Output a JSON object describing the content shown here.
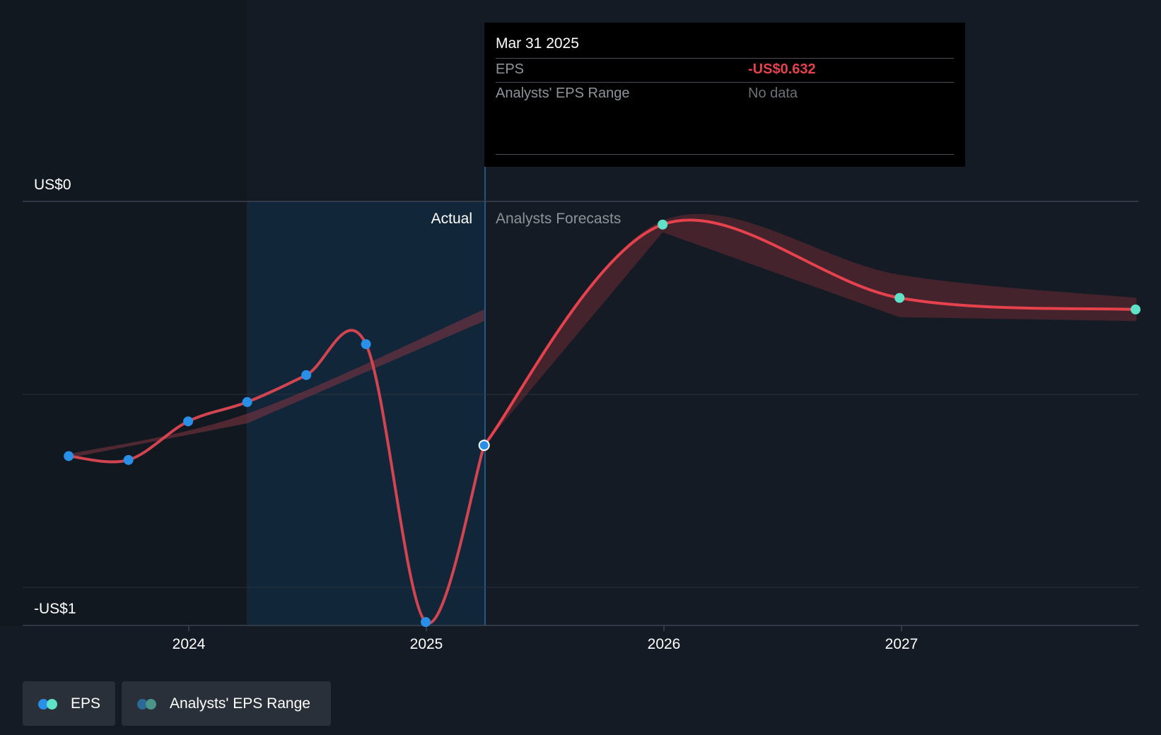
{
  "tooltip": {
    "date": "Mar 31 2025",
    "rows": [
      {
        "label": "EPS",
        "value": "-US$0.632"
      },
      {
        "label": "Analysts' EPS Range",
        "value": "No data"
      }
    ]
  },
  "labels": {
    "actual": "Actual",
    "forecast": "Analysts Forecasts"
  },
  "legend": {
    "eps": "EPS",
    "range": "Analysts' EPS Range"
  },
  "colors": {
    "background": "#151b24",
    "eps_line": "#e5424d",
    "actual_marker": "#2a8fe6",
    "forecast_marker": "#5fe3c8",
    "range_band": "#6b2a33",
    "highlight_region": "#12263a"
  },
  "chart_data": {
    "type": "line",
    "title": "",
    "xlabel": "",
    "ylabel": "",
    "y_axis_labels": [
      "US$0",
      "-US$1"
    ],
    "x_ticks": [
      "2024",
      "2025",
      "2026",
      "2027"
    ],
    "ylim": [
      -1.1,
      0
    ],
    "grid": true,
    "legend": "bottom-left",
    "series": [
      {
        "name": "EPS",
        "kind": "actual",
        "points": [
          {
            "x": "2023-06-30",
            "y": -0.66
          },
          {
            "x": "2023-09-30",
            "y": -0.67
          },
          {
            "x": "2023-12-31",
            "y": -0.57
          },
          {
            "x": "2024-03-31",
            "y": -0.52
          },
          {
            "x": "2024-06-30",
            "y": -0.45
          },
          {
            "x": "2024-09-30",
            "y": -0.37
          },
          {
            "x": "2024-12-31",
            "y": -1.09
          },
          {
            "x": "2025-03-31",
            "y": -0.632
          }
        ]
      },
      {
        "name": "EPS",
        "kind": "forecast",
        "points": [
          {
            "x": "2025-03-31",
            "y": -0.632
          },
          {
            "x": "2025-12-31",
            "y": -0.06
          },
          {
            "x": "2026-12-31",
            "y": -0.25
          },
          {
            "x": "2027-12-31",
            "y": -0.28
          }
        ]
      },
      {
        "name": "Analysts' EPS Range",
        "kind": "range",
        "points": [
          {
            "x": "2025-12-31",
            "low": -0.08,
            "high": -0.05
          },
          {
            "x": "2026-12-31",
            "low": -0.3,
            "high": -0.19
          },
          {
            "x": "2027-12-31",
            "low": -0.31,
            "high": -0.25
          }
        ]
      }
    ]
  }
}
